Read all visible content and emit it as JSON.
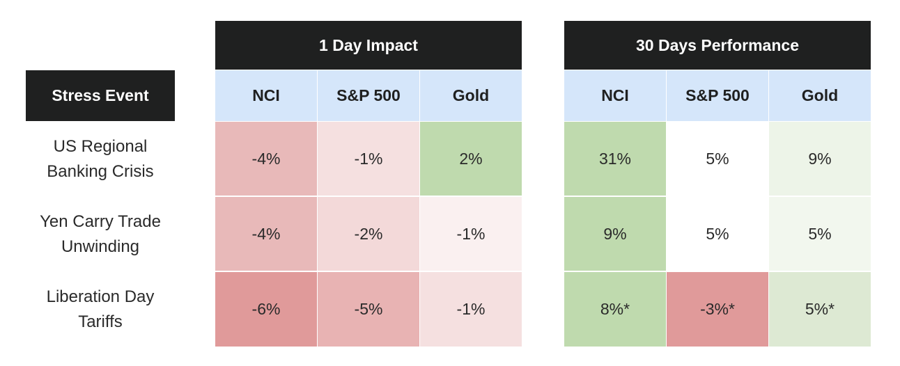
{
  "row_header_label": "Stress Event",
  "events": [
    [
      "US Regional",
      "Banking Crisis"
    ],
    [
      "Yen Carry Trade",
      "Unwinding"
    ],
    [
      "Liberation Day",
      "Tariffs"
    ]
  ],
  "tables": [
    {
      "title": "1 Day Impact",
      "columns": [
        "NCI",
        "S&P 500",
        "Gold"
      ],
      "cells": [
        [
          {
            "text": "-4%",
            "color": "#e8b9b9"
          },
          {
            "text": "-1%",
            "color": "#f5e0e0"
          },
          {
            "text": "2%",
            "color": "#bfdaae"
          }
        ],
        [
          {
            "text": "-4%",
            "color": "#e8b9b9"
          },
          {
            "text": "-2%",
            "color": "#f3d9d9"
          },
          {
            "text": "-1%",
            "color": "#faf0f0"
          }
        ],
        [
          {
            "text": "-6%",
            "color": "#e09a9a"
          },
          {
            "text": "-5%",
            "color": "#e8b3b3"
          },
          {
            "text": "-1%",
            "color": "#f5e0e0"
          }
        ]
      ]
    },
    {
      "title": "30 Days Performance",
      "columns": [
        "NCI",
        "S&P 500",
        "Gold"
      ],
      "cells": [
        [
          {
            "text": "31%",
            "color": "#bfdaae"
          },
          {
            "text": "5%",
            "color": "#ffffff"
          },
          {
            "text": "9%",
            "color": "#edf4e8"
          }
        ],
        [
          {
            "text": "9%",
            "color": "#bfdaae"
          },
          {
            "text": "5%",
            "color": "#ffffff"
          },
          {
            "text": "5%",
            "color": "#f2f7ee"
          }
        ],
        [
          {
            "text": "8%*",
            "color": "#bfdaae"
          },
          {
            "text": "-3%*",
            "color": "#e09a9a"
          },
          {
            "text": "5%*",
            "color": "#dde9d3"
          }
        ]
      ]
    }
  ],
  "chart_data": [
    {
      "type": "table",
      "title": "1 Day Impact",
      "row_header": "Stress Event",
      "rows": [
        "US Regional Banking Crisis",
        "Yen Carry Trade Unwinding",
        "Liberation Day Tariffs"
      ],
      "columns": [
        "NCI",
        "S&P 500",
        "Gold"
      ],
      "values": [
        [
          -4,
          -1,
          2
        ],
        [
          -4,
          -2,
          -1
        ],
        [
          -6,
          -5,
          -1
        ]
      ]
    },
    {
      "type": "table",
      "title": "30 Days Performance",
      "row_header": "Stress Event",
      "rows": [
        "US Regional Banking Crisis",
        "Yen Carry Trade Unwinding",
        "Liberation Day Tariffs"
      ],
      "columns": [
        "NCI",
        "S&P 500",
        "Gold"
      ],
      "values": [
        [
          31,
          5,
          9
        ],
        [
          9,
          5,
          5
        ],
        [
          8,
          -3,
          5
        ]
      ]
    }
  ]
}
